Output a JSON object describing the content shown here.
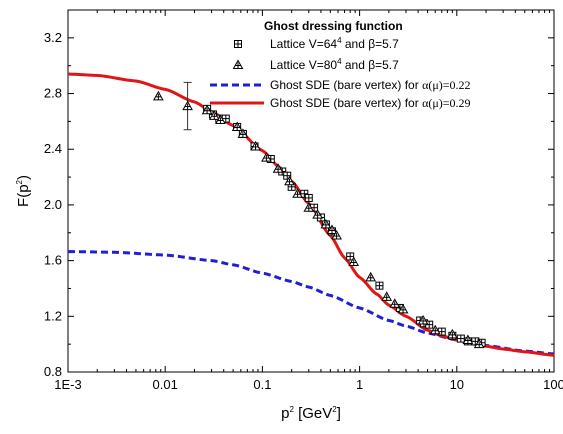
{
  "chart_data": {
    "type": "line",
    "title": "",
    "xlabel": {
      "base": "p",
      "sup": "2",
      "unit_pre": " [GeV",
      "unit_sup": "2",
      "unit_post": "]"
    },
    "ylabel": {
      "base": "F(p",
      "sup": "2",
      "post": ")"
    },
    "x_scale": "log",
    "xlim": [
      0.001,
      100
    ],
    "ylim": [
      0.8,
      3.4
    ],
    "x_ticks": [
      {
        "value": 0.001,
        "label": "1E-3"
      },
      {
        "value": 0.01,
        "label": "0.01"
      },
      {
        "value": 0.1,
        "label": "0.1"
      },
      {
        "value": 1,
        "label": "1"
      },
      {
        "value": 10,
        "label": "10"
      },
      {
        "value": 100,
        "label": "100"
      }
    ],
    "y_ticks": [
      {
        "value": 0.8,
        "label": "0.8"
      },
      {
        "value": 1.2,
        "label": "1.2"
      },
      {
        "value": 1.6,
        "label": "1.6"
      },
      {
        "value": 2.0,
        "label": "2.0"
      },
      {
        "value": 2.4,
        "label": "2.4"
      },
      {
        "value": 2.8,
        "label": "2.8"
      },
      {
        "value": 3.2,
        "label": "3.2"
      }
    ],
    "grid": false,
    "legend": {
      "placement": "top-right",
      "title": "Ghost dressing function",
      "entries": [
        {
          "pre": "Lattice V=64",
          "sup": "4",
          "post": " and β=5.7",
          "symbol": "boxed-plus"
        },
        {
          "pre": "Lattice V=80",
          "sup": "4",
          "post": " and β=5.7",
          "symbol": "triangle-plus"
        },
        {
          "pre": "Ghost SDE (bare vertex) for ",
          "sup": "",
          "post": "α(μ)=0.22",
          "symbol": "dashed-line"
        },
        {
          "pre": "Ghost SDE (bare vertex) for ",
          "sup": "",
          "post": "α(μ)=0.29",
          "symbol": "solid-line"
        }
      ]
    },
    "colors": {
      "dashed": "#1f1fd6",
      "solid": "#e01515",
      "markers": "#000000"
    },
    "series": [
      {
        "symbol": "boxed-plus",
        "x": [
          0.027,
          0.031,
          0.036,
          0.042,
          0.055,
          0.063,
          0.083,
          0.122,
          0.16,
          0.18,
          0.2,
          0.27,
          0.3,
          0.34,
          0.4,
          0.45,
          0.52,
          0.8,
          1.6,
          2.6,
          4.2,
          4.6,
          5.2,
          7.0,
          9.0,
          11.0,
          13.0,
          15.5,
          18.0
        ],
        "y": [
          2.69,
          2.65,
          2.62,
          2.62,
          2.56,
          2.51,
          2.42,
          2.33,
          2.24,
          2.21,
          2.13,
          2.08,
          2.05,
          1.98,
          1.91,
          1.86,
          1.81,
          1.63,
          1.42,
          1.26,
          1.17,
          1.15,
          1.14,
          1.09,
          1.06,
          1.04,
          1.02,
          1.02,
          1.01
        ]
      },
      {
        "symbol": "triangle-plus",
        "x": [
          0.0085,
          0.017,
          0.027,
          0.032,
          0.037,
          0.055,
          0.063,
          0.085,
          0.11,
          0.145,
          0.19,
          0.23,
          0.3,
          0.37,
          0.45,
          0.52,
          0.58,
          0.87,
          1.3,
          1.9,
          2.3,
          2.8,
          4.5,
          6.0,
          9.0,
          13.0,
          17.0
        ],
        "y": [
          2.78,
          2.71,
          2.68,
          2.64,
          2.61,
          2.56,
          2.51,
          2.42,
          2.34,
          2.26,
          2.17,
          2.08,
          1.98,
          1.93,
          1.86,
          1.82,
          1.78,
          1.59,
          1.48,
          1.34,
          1.29,
          1.25,
          1.17,
          1.1,
          1.07,
          1.03,
          1.0
        ]
      }
    ],
    "error_bar": {
      "x": 0.017,
      "y": 2.71,
      "low": 2.54,
      "high": 2.88
    },
    "curves": [
      {
        "style": "dashed",
        "x": [
          0.001,
          0.003,
          0.01,
          0.03,
          0.05,
          0.1,
          0.2,
          0.3,
          0.5,
          1,
          2,
          3,
          5,
          10,
          20,
          50,
          100
        ],
        "y": [
          1.665,
          1.66,
          1.64,
          1.6,
          1.57,
          1.51,
          1.45,
          1.41,
          1.35,
          1.26,
          1.17,
          1.13,
          1.08,
          1.03,
          0.99,
          0.95,
          0.93
        ]
      },
      {
        "style": "solid",
        "x": [
          0.001,
          0.002,
          0.005,
          0.01,
          0.02,
          0.03,
          0.05,
          0.1,
          0.15,
          0.2,
          0.3,
          0.5,
          0.7,
          1,
          1.5,
          2,
          3,
          5,
          7,
          10,
          15,
          20,
          30,
          50,
          100
        ],
        "y": [
          2.94,
          2.93,
          2.89,
          2.83,
          2.74,
          2.67,
          2.57,
          2.39,
          2.27,
          2.17,
          2.01,
          1.78,
          1.62,
          1.48,
          1.36,
          1.28,
          1.2,
          1.1,
          1.06,
          1.03,
          1.0,
          0.985,
          0.965,
          0.945,
          0.92
        ]
      }
    ]
  }
}
